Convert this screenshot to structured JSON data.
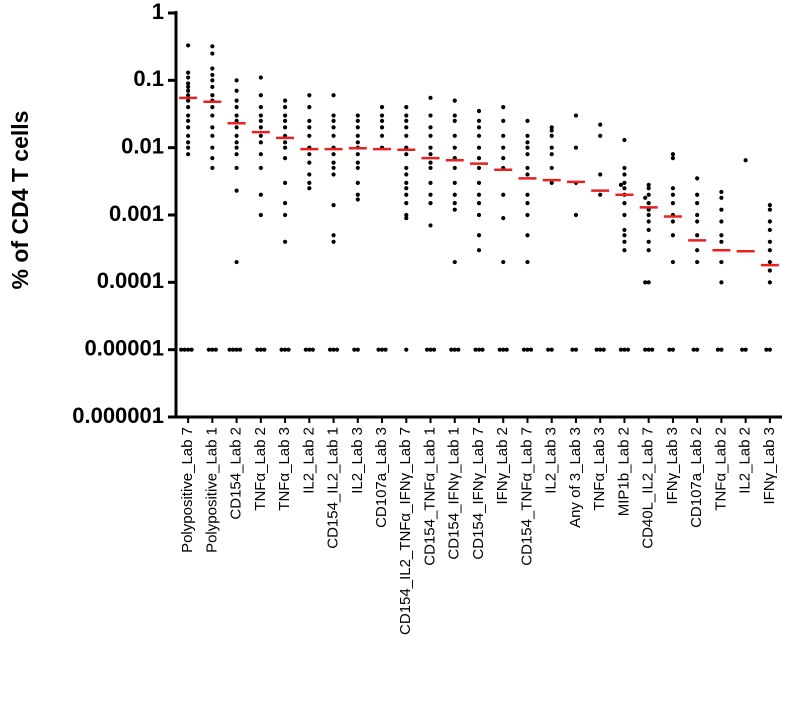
{
  "chart_data": {
    "type": "dot",
    "y_label": "% of CD4 T cells",
    "log_scale": true,
    "ylim": [
      1e-06,
      1
    ],
    "yticks": [
      1,
      0.1,
      0.01,
      0.001,
      0.0001,
      1e-05,
      1e-06
    ],
    "point_color": "#000000",
    "median_color": "#e8201f",
    "categories": [
      "Polypositive_Lab 7",
      "Polypositive_Lab 1",
      "CD154_Lab 2",
      "TNFα_Lab 2",
      "TNFα_Lab 3",
      "IL2_Lab 2",
      "CD154_IL2_Lab 1",
      "IL2_Lab 3",
      "CD107a_Lab 3",
      "CD154_IL2_TNFα_IFNγ_Lab 7",
      "CD154_TNFα_Lab 1",
      "CD154_IFNγ_Lab 1",
      "CD154_IFNγ_Lab 7",
      "IFNγ_Lab 2",
      "CD154_TNFα_Lab 7",
      "IL2_Lab 3",
      "Any of 3_Lab 3",
      "TNFα_Lab 3",
      "MIP1b_Lab 2",
      "CD40L_IL2_Lab 7",
      "IFNγ_Lab 3",
      "CD107a_Lab 2",
      "TNFα_Lab 2",
      "IL2_Lab 2",
      "IFNγ_Lab 3"
    ],
    "medians": [
      0.055,
      0.048,
      0.023,
      0.017,
      0.014,
      0.0095,
      0.0095,
      0.0098,
      0.0095,
      0.0093,
      0.007,
      0.0065,
      0.0058,
      0.0047,
      0.0035,
      0.0033,
      0.0031,
      0.0023,
      0.002,
      0.0013,
      0.00095,
      0.00042,
      0.0003,
      0.00029,
      0.00018
    ],
    "points": [
      [
        0.33,
        0.13,
        0.11,
        0.09,
        0.08,
        0.07,
        0.06,
        0.05,
        0.04,
        0.03,
        0.025,
        0.02,
        0.015,
        0.012,
        0.01,
        0.008,
        1e-05,
        1e-05,
        1e-05,
        1e-05
      ],
      [
        0.32,
        0.25,
        0.15,
        0.12,
        0.1,
        0.08,
        0.06,
        0.05,
        0.04,
        0.03,
        0.02,
        0.015,
        0.01,
        0.007,
        0.005,
        1e-05,
        1e-05,
        1e-05
      ],
      [
        0.1,
        0.07,
        0.05,
        0.04,
        0.03,
        0.025,
        0.02,
        0.015,
        0.012,
        0.01,
        0.008,
        0.005,
        0.0023,
        0.0002,
        1e-05,
        1e-05,
        1e-05,
        1e-05
      ],
      [
        0.11,
        0.06,
        0.04,
        0.03,
        0.025,
        0.02,
        0.015,
        0.012,
        0.008,
        0.005,
        0.002,
        0.001,
        1e-05,
        1e-05,
        1e-05
      ],
      [
        0.05,
        0.04,
        0.03,
        0.025,
        0.02,
        0.015,
        0.012,
        0.01,
        0.007,
        0.003,
        0.0015,
        0.001,
        0.0004,
        1e-05,
        1e-05,
        1e-05
      ],
      [
        0.06,
        0.04,
        0.025,
        0.02,
        0.015,
        0.01,
        0.008,
        0.006,
        0.004,
        0.003,
        0.0025,
        1e-05,
        1e-05,
        1e-05
      ],
      [
        0.06,
        0.03,
        0.025,
        0.02,
        0.015,
        0.01,
        0.008,
        0.006,
        0.005,
        0.004,
        0.0014,
        0.0005,
        0.0004,
        1e-05,
        1e-05,
        1e-05
      ],
      [
        0.03,
        0.025,
        0.02,
        0.015,
        0.012,
        0.01,
        0.008,
        0.006,
        0.005,
        0.003,
        0.002,
        0.0017,
        1e-05,
        1e-05
      ],
      [
        0.04,
        0.03,
        0.025,
        0.02,
        0.015,
        0.01,
        1e-05,
        1e-05,
        1e-05
      ],
      [
        0.04,
        0.03,
        0.025,
        0.02,
        0.015,
        0.01,
        0.008,
        0.005,
        0.004,
        0.003,
        0.0025,
        0.002,
        0.0015,
        0.001,
        0.0009,
        1e-05
      ],
      [
        0.055,
        0.03,
        0.02,
        0.015,
        0.01,
        0.008,
        0.006,
        0.005,
        0.003,
        0.002,
        0.0015,
        0.0007,
        1e-05,
        1e-05,
        1e-05
      ],
      [
        0.05,
        0.03,
        0.025,
        0.015,
        0.01,
        0.007,
        0.005,
        0.003,
        0.002,
        0.0015,
        0.0012,
        0.0002,
        1e-05,
        1e-05,
        1e-05
      ],
      [
        0.035,
        0.025,
        0.02,
        0.015,
        0.01,
        0.007,
        0.005,
        0.003,
        0.002,
        0.0015,
        0.001,
        0.0005,
        0.0003,
        1e-05,
        1e-05,
        1e-05
      ],
      [
        0.04,
        0.025,
        0.015,
        0.01,
        0.007,
        0.005,
        0.002,
        0.0009,
        0.0002,
        1e-05,
        1e-05,
        1e-05
      ],
      [
        0.025,
        0.015,
        0.012,
        0.01,
        0.008,
        0.005,
        0.004,
        0.002,
        0.0015,
        0.001,
        0.0005,
        0.0002,
        1e-05,
        1e-05,
        1e-05
      ],
      [
        0.02,
        0.018,
        0.015,
        0.01,
        0.008,
        0.005,
        0.003,
        1e-05,
        1e-05
      ],
      [
        0.03,
        0.01,
        0.003,
        0.001,
        1e-05,
        1e-05
      ],
      [
        0.022,
        0.015,
        0.004,
        0.002,
        1e-05,
        1e-05,
        1e-05
      ],
      [
        0.013,
        0.005,
        0.004,
        0.003,
        0.0028,
        0.0025,
        0.002,
        0.0015,
        0.001,
        0.0006,
        0.0005,
        0.0004,
        0.0003,
        1e-05,
        1e-05,
        1e-05
      ],
      [
        0.0028,
        0.0025,
        0.002,
        0.0018,
        0.0015,
        0.0012,
        0.001,
        0.0008,
        0.0006,
        0.0004,
        0.0003,
        0.0001,
        0.0001,
        1e-05,
        1e-05,
        1e-05
      ],
      [
        0.008,
        0.007,
        0.0025,
        0.002,
        0.0015,
        0.001,
        0.0008,
        0.0005,
        0.0002,
        1e-05,
        1e-05
      ],
      [
        0.0035,
        0.002,
        0.0015,
        0.001,
        0.0008,
        0.0005,
        0.0003,
        0.0002,
        1e-05,
        1e-05
      ],
      [
        0.0022,
        0.0018,
        0.0012,
        0.0008,
        0.0005,
        0.0004,
        0.0002,
        0.0001,
        1e-05,
        1e-05
      ],
      [
        0.0065,
        1e-05,
        1e-05
      ],
      [
        0.0014,
        0.0012,
        0.0008,
        0.0006,
        0.0004,
        0.0003,
        0.0002,
        0.00015,
        0.0001,
        1e-05,
        1e-05
      ]
    ]
  }
}
